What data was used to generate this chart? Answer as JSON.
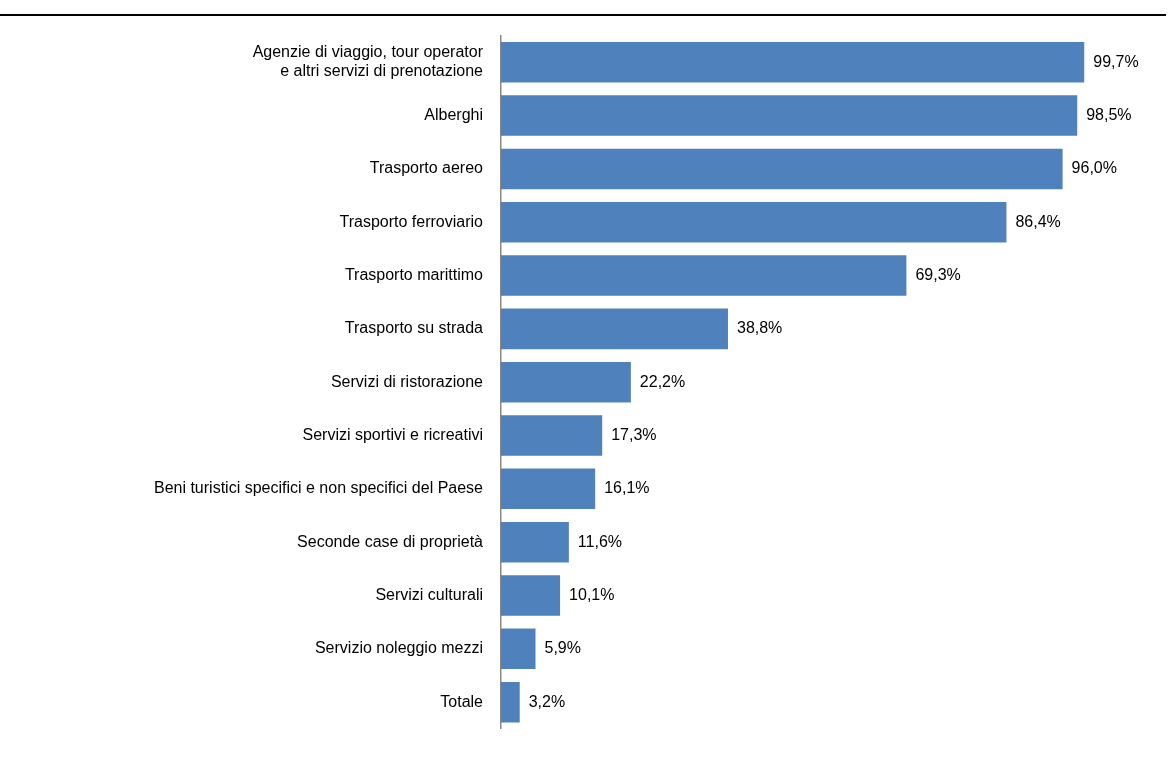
{
  "chart_data": {
    "type": "bar",
    "orientation": "horizontal",
    "categories": [
      "Agenzie di viaggio, tour operator\ne altri servizi di prenotazione",
      "Alberghi",
      "Trasporto aereo",
      "Trasporto ferroviario",
      "Trasporto marittimo",
      "Trasporto su strada",
      "Servizi di ristorazione",
      "Servizi sportivi e ricreativi",
      "Beni turistici specifici e non specifici del Paese",
      "Seconde case di proprietà",
      "Servizi culturali",
      "Servizio noleggio mezzi",
      "Totale"
    ],
    "values": [
      99.7,
      98.5,
      96.0,
      86.4,
      69.3,
      38.8,
      22.2,
      17.3,
      16.1,
      11.6,
      10.1,
      5.9,
      3.2
    ],
    "value_labels": [
      "99,7%",
      "98,5%",
      "96,0%",
      "86,4%",
      "69,3%",
      "38,8%",
      "22,2%",
      "17,3%",
      "16,1%",
      "11,6%",
      "10,1%",
      "5,9%",
      "3,2%"
    ],
    "color": "#4f81bd",
    "legend": false
  }
}
